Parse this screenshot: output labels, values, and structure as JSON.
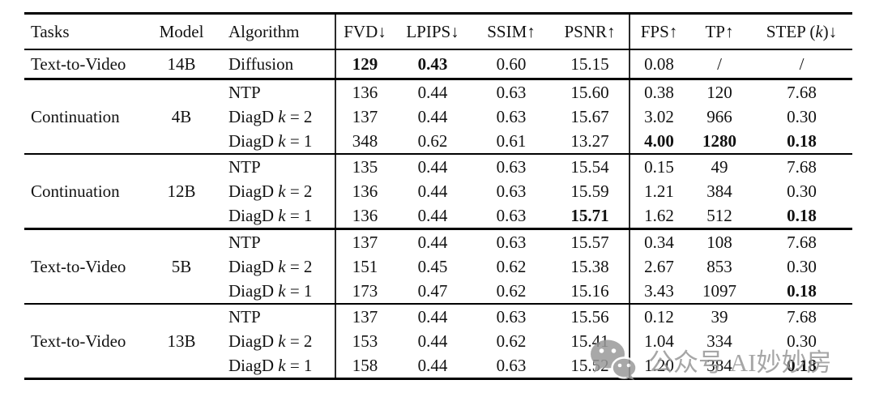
{
  "page": {
    "background": "#ffffff"
  },
  "colors": {
    "rule_heavy": "#000000",
    "rule_light": "#2a2a2a",
    "text": "#121212",
    "watermark_gray": "#969696"
  },
  "table": {
    "columns": [
      {
        "id": "tasks",
        "label": "Tasks"
      },
      {
        "id": "model",
        "label": "Model"
      },
      {
        "id": "algorithm",
        "label": "Algorithm"
      },
      {
        "id": "fvd",
        "label": "FVD↓"
      },
      {
        "id": "lpips",
        "label": "LPIPS↓"
      },
      {
        "id": "ssim",
        "label": "SSIM↑"
      },
      {
        "id": "psnr",
        "label": "PSNR↑"
      },
      {
        "id": "fps",
        "label": "FPS↑"
      },
      {
        "id": "tp",
        "label": "TP↑"
      },
      {
        "id": "step",
        "label": "STEP (k)↓"
      }
    ],
    "groups": [
      {
        "task": "Text-to-Video",
        "model": "14B",
        "rows": [
          {
            "algorithm": "Diffusion",
            "values": [
              "129",
              "0.43",
              "0.60",
              "15.15",
              "0.08",
              "/",
              "/"
            ],
            "bold_value_indices": [
              0,
              1
            ]
          }
        ],
        "separator_after": "thick"
      },
      {
        "task": "Continuation",
        "model": "4B",
        "rows": [
          {
            "algorithm": "NTP",
            "values": [
              "136",
              "0.44",
              "0.63",
              "15.60",
              "0.38",
              "120",
              "7.68"
            ],
            "bold_value_indices": []
          },
          {
            "algorithm": "DiagD k = 2",
            "values": [
              "137",
              "0.44",
              "0.63",
              "15.67",
              "3.02",
              "966",
              "0.30"
            ],
            "bold_value_indices": []
          },
          {
            "algorithm": "DiagD k = 1",
            "values": [
              "348",
              "0.62",
              "0.61",
              "13.27",
              "4.00",
              "1280",
              "0.18"
            ],
            "bold_value_indices": [
              4,
              5,
              6
            ]
          }
        ],
        "separator_after": "thin"
      },
      {
        "task": "Continuation",
        "model": "12B",
        "rows": [
          {
            "algorithm": "NTP",
            "values": [
              "135",
              "0.44",
              "0.63",
              "15.54",
              "0.15",
              "49",
              "7.68"
            ],
            "bold_value_indices": []
          },
          {
            "algorithm": "DiagD k = 2",
            "values": [
              "136",
              "0.44",
              "0.63",
              "15.59",
              "1.21",
              "384",
              "0.30"
            ],
            "bold_value_indices": []
          },
          {
            "algorithm": "DiagD k = 1",
            "values": [
              "136",
              "0.44",
              "0.63",
              "15.71",
              "1.62",
              "512",
              "0.18"
            ],
            "bold_value_indices": [
              3,
              6
            ]
          }
        ],
        "separator_after": "thick"
      },
      {
        "task": "Text-to-Video",
        "model": "5B",
        "rows": [
          {
            "algorithm": "NTP",
            "values": [
              "137",
              "0.44",
              "0.63",
              "15.57",
              "0.34",
              "108",
              "7.68"
            ],
            "bold_value_indices": []
          },
          {
            "algorithm": "DiagD k = 2",
            "values": [
              "151",
              "0.45",
              "0.62",
              "15.38",
              "2.67",
              "853",
              "0.30"
            ],
            "bold_value_indices": []
          },
          {
            "algorithm": "DiagD k = 1",
            "values": [
              "173",
              "0.47",
              "0.62",
              "15.16",
              "3.43",
              "1097",
              "0.18"
            ],
            "bold_value_indices": [
              6
            ]
          }
        ],
        "separator_after": "thin"
      },
      {
        "task": "Text-to-Video",
        "model": "13B",
        "rows": [
          {
            "algorithm": "NTP",
            "values": [
              "137",
              "0.44",
              "0.63",
              "15.56",
              "0.12",
              "39",
              "7.68"
            ],
            "bold_value_indices": []
          },
          {
            "algorithm": "DiagD k = 2",
            "values": [
              "153",
              "0.44",
              "0.62",
              "15.41",
              "1.04",
              "334",
              "0.30"
            ],
            "bold_value_indices": []
          },
          {
            "algorithm": "DiagD k = 1",
            "values": [
              "158",
              "0.44",
              "0.63",
              "15.52",
              "1.20",
              "384",
              "0.18"
            ],
            "bold_value_indices": [
              6
            ]
          }
        ],
        "separator_after": "bottom"
      }
    ]
  },
  "watermark": {
    "icon": "wechat-icon",
    "text": "公众号 AI妙妙房"
  }
}
